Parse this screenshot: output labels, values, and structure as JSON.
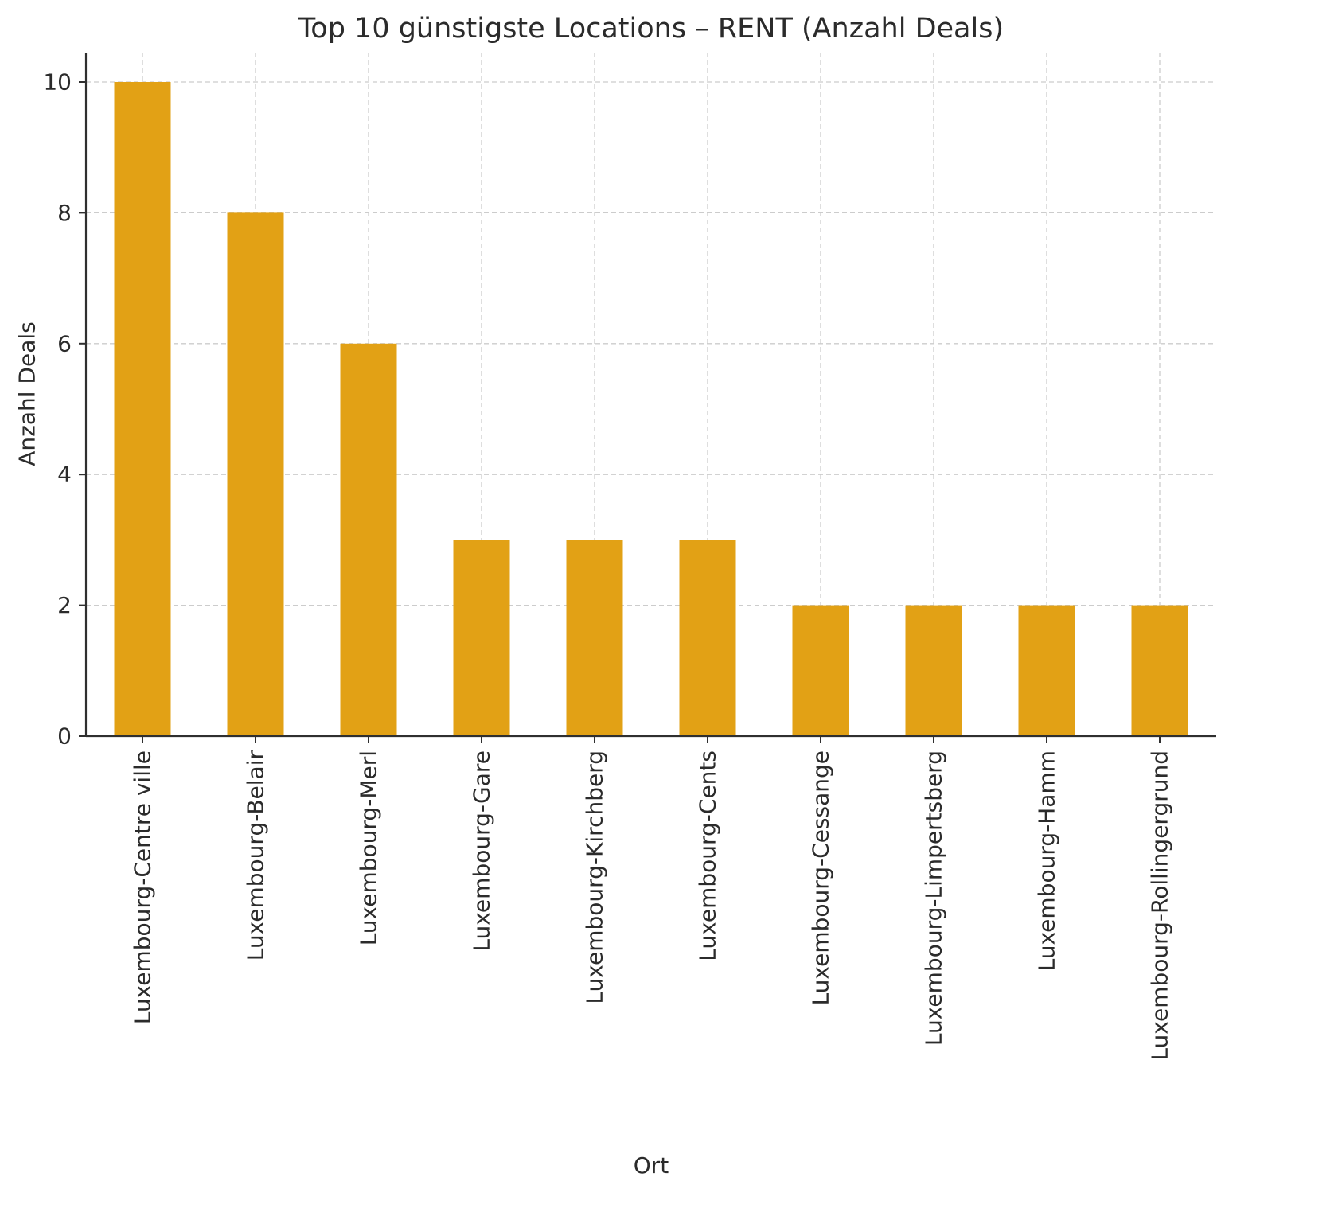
{
  "chart_data": {
    "type": "bar",
    "title": "Top 10 günstigste Locations – RENT (Anzahl Deals)",
    "xlabel": "Ort",
    "ylabel": "Anzahl Deals",
    "categories": [
      "Luxembourg-Centre ville",
      "Luxembourg-Belair",
      "Luxembourg-Merl",
      "Luxembourg-Gare",
      "Luxembourg-Kirchberg",
      "Luxembourg-Cents",
      "Luxembourg-Cessange",
      "Luxembourg-Limpertsberg",
      "Luxembourg-Hamm",
      "Luxembourg-Rollingergrund"
    ],
    "values": [
      10,
      8,
      6,
      3,
      3,
      3,
      2,
      2,
      2,
      2
    ],
    "yticks": [
      0,
      2,
      4,
      6,
      8,
      10
    ],
    "ylim": [
      0,
      10.45
    ],
    "bar_color": "#E2A115",
    "grid": true,
    "grid_style": "dashed",
    "legend": "none"
  }
}
